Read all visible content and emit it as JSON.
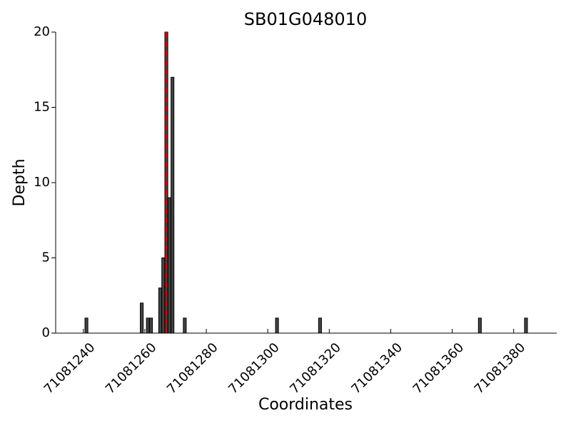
{
  "chart_data": {
    "type": "bar",
    "title": "SB01G048010",
    "x_label": "Coordinates",
    "y_label": "Depth",
    "x": [
      71081241,
      71081259,
      71081261,
      71081262,
      71081265,
      71081266,
      71081267,
      71081268,
      71081269,
      71081273,
      71081303,
      71081317,
      71081369,
      71081384
    ],
    "values": [
      1,
      2,
      1,
      1,
      3,
      5,
      20,
      9,
      17,
      1,
      1,
      1,
      1,
      1
    ],
    "color": "#444444",
    "xlim": [
      71081231,
      71081394
    ],
    "xticks": [
      71081240,
      71081260,
      71081280,
      71081300,
      71081320,
      71081340,
      71081360,
      71081380
    ],
    "ylim": [
      0,
      20
    ],
    "yticks": [
      0,
      5,
      10,
      15,
      20
    ],
    "marker_x": 71081267,
    "marker_color": "#dd0000"
  }
}
